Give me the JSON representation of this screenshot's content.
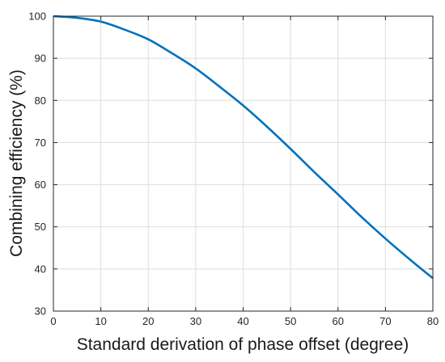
{
  "chart_data": {
    "type": "line",
    "title": "",
    "xlabel": "Standard derivation of phase offset (degree)",
    "ylabel": "Combining efficiency (%)",
    "xlim": [
      0,
      80
    ],
    "ylim": [
      30,
      100
    ],
    "xticks": [
      0,
      10,
      20,
      30,
      40,
      50,
      60,
      70,
      80
    ],
    "yticks": [
      30,
      40,
      50,
      60,
      70,
      80,
      90,
      100
    ],
    "grid": true,
    "legend": "none",
    "series": [
      {
        "color": "#0072BD",
        "x": [
          0,
          5,
          10,
          15,
          20,
          25,
          30,
          35,
          40,
          45,
          50,
          55,
          60,
          65,
          70,
          75,
          80
        ],
        "y": [
          100,
          99.6,
          98.7,
          96.8,
          94.5,
          91.2,
          87.6,
          83.3,
          78.8,
          73.8,
          68.5,
          63.0,
          57.7,
          52.3,
          47.2,
          42.4,
          37.8
        ]
      }
    ]
  }
}
